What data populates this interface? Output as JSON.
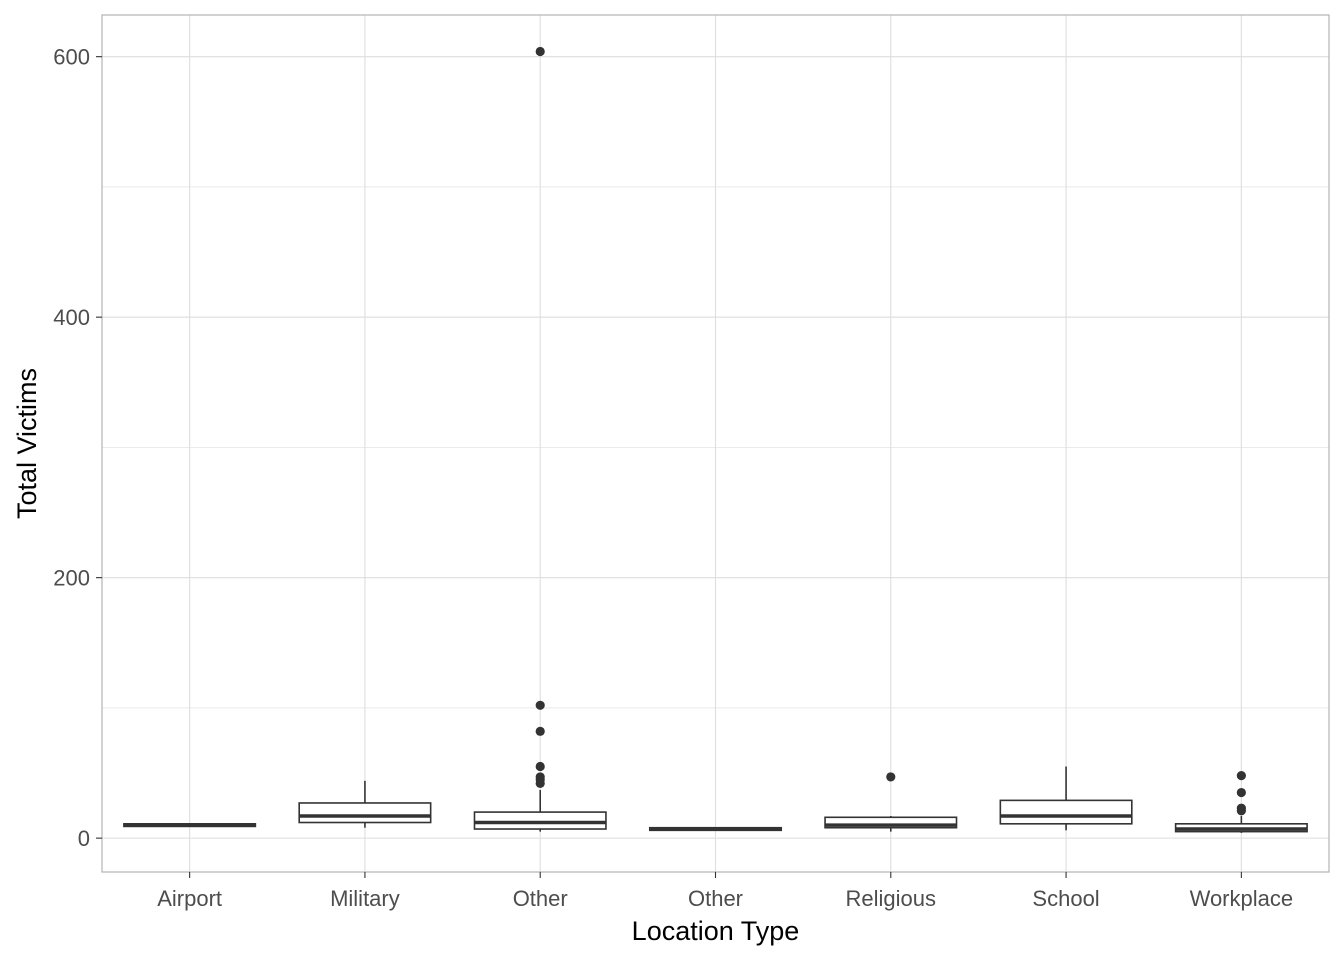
{
  "chart_data": {
    "type": "boxplot",
    "xlabel": "Location Type",
    "ylabel": "Total Victims",
    "ylim": [
      -26,
      632
    ],
    "yticks": [
      0,
      200,
      400,
      600
    ],
    "grid": true,
    "theme": "light",
    "categories": [
      "Airport",
      "Military",
      "Other",
      "Other",
      "Religious",
      "School",
      "Workplace"
    ],
    "boxes": [
      {
        "category": "Airport",
        "whisker_low": 9,
        "q1": 9,
        "median": 10,
        "q3": 11,
        "whisker_high": 11,
        "outliers": []
      },
      {
        "category": "Military",
        "whisker_low": 8,
        "q1": 12,
        "median": 17,
        "q3": 27,
        "whisker_high": 44,
        "outliers": []
      },
      {
        "category": "Other",
        "whisker_low": 5,
        "q1": 7,
        "median": 12,
        "q3": 20,
        "whisker_high": 37,
        "outliers": [
          604,
          102,
          82,
          55,
          47,
          45,
          42
        ]
      },
      {
        "category": "Other",
        "whisker_low": 6,
        "q1": 6,
        "median": 7,
        "q3": 8,
        "whisker_high": 8,
        "outliers": []
      },
      {
        "category": "Religious",
        "whisker_low": 5,
        "q1": 8,
        "median": 10,
        "q3": 16,
        "whisker_high": 17,
        "outliers": [
          47
        ]
      },
      {
        "category": "School",
        "whisker_low": 6,
        "q1": 11,
        "median": 17,
        "q3": 29,
        "whisker_high": 55,
        "outliers": []
      },
      {
        "category": "Workplace",
        "whisker_low": 4,
        "q1": 5,
        "median": 7,
        "q3": 11,
        "whisker_high": 17,
        "outliers": [
          48,
          35,
          23,
          21
        ]
      }
    ],
    "colors": {
      "box_stroke": "#333333",
      "box_fill": "#ffffff",
      "grid": "#dedede",
      "panel_border": "#b3b3b3",
      "outlier": "#333333"
    }
  }
}
